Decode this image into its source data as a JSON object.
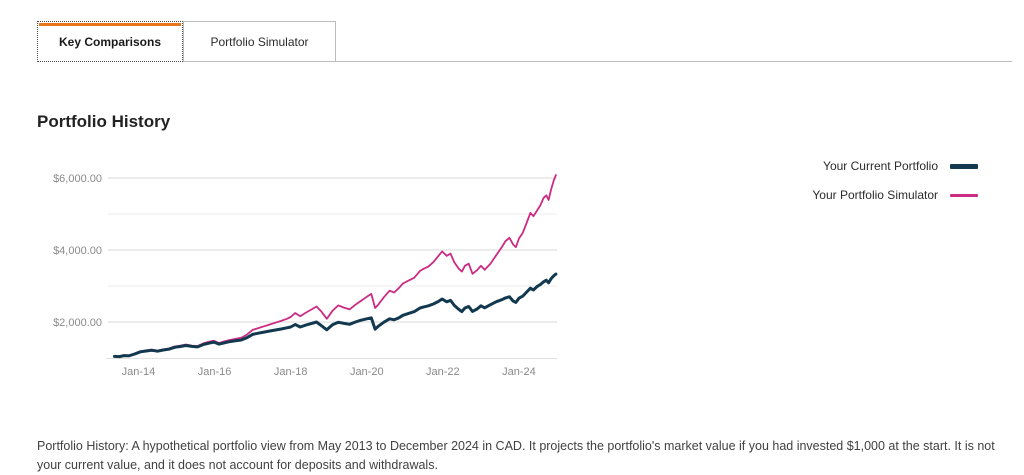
{
  "tabs": [
    {
      "label": "Key Comparisons",
      "active": true
    },
    {
      "label": "Portfolio Simulator",
      "active": false
    }
  ],
  "section": {
    "title": "Portfolio History"
  },
  "footnote": "Portfolio History: A hypothetical portfolio view from May 2013 to December 2024 in CAD. It projects the portfolio's market value if you had invested $1,000 at the start. It is not your current value, and it does not account for deposits and withdrawals.",
  "colors": {
    "accent_orange": "#e8771c",
    "current_portfolio": "#12394f",
    "portfolio_simulator": "#cb2b83",
    "grid_major": "#dadada",
    "grid_minor": "#ededed",
    "axis_line": "#e0e0e0",
    "axis_text": "#8a8a8a"
  },
  "chart_data": {
    "type": "line",
    "title": "Portfolio History",
    "currency": "CAD",
    "xlabel": "",
    "ylabel": "",
    "legend_position": "right",
    "grid": "horizontal",
    "x_range": [
      2013.33,
      2025.0
    ],
    "y_range": [
      1000,
      6900
    ],
    "x_ticks": [
      {
        "t": 2014,
        "label": "Jan-14"
      },
      {
        "t": 2016,
        "label": "Jan-16"
      },
      {
        "t": 2018,
        "label": "Jan-18"
      },
      {
        "t": 2020,
        "label": "Jan-20"
      },
      {
        "t": 2022,
        "label": "Jan-22"
      },
      {
        "t": 2024,
        "label": "Jan-24"
      }
    ],
    "y_ticks": [
      {
        "v": 2000,
        "label": "$2,000.00"
      },
      {
        "v": 4000,
        "label": "$4,000.00"
      },
      {
        "v": 6000,
        "label": "$6,000.00"
      }
    ],
    "grid_minor_v": [
      3000,
      5000
    ],
    "series": [
      {
        "name": "Your Current Portfolio",
        "color": "#12394f",
        "stroke_width": 3,
        "points": [
          [
            2013.37,
            1045
          ],
          [
            2013.5,
            1040
          ],
          [
            2013.62,
            1068
          ],
          [
            2013.75,
            1062
          ],
          [
            2013.9,
            1112
          ],
          [
            2014.05,
            1172
          ],
          [
            2014.2,
            1195
          ],
          [
            2014.35,
            1215
          ],
          [
            2014.5,
            1190
          ],
          [
            2014.65,
            1222
          ],
          [
            2014.8,
            1245
          ],
          [
            2014.95,
            1298
          ],
          [
            2015.1,
            1320
          ],
          [
            2015.25,
            1348
          ],
          [
            2015.4,
            1322
          ],
          [
            2015.55,
            1308
          ],
          [
            2015.7,
            1372
          ],
          [
            2015.85,
            1412
          ],
          [
            2015.98,
            1442
          ],
          [
            2016.12,
            1385
          ],
          [
            2016.25,
            1420
          ],
          [
            2016.4,
            1455
          ],
          [
            2016.55,
            1478
          ],
          [
            2016.7,
            1500
          ],
          [
            2016.85,
            1565
          ],
          [
            2017.0,
            1655
          ],
          [
            2017.15,
            1690
          ],
          [
            2017.3,
            1720
          ],
          [
            2017.45,
            1750
          ],
          [
            2017.6,
            1778
          ],
          [
            2017.75,
            1805
          ],
          [
            2017.9,
            1838
          ],
          [
            2018.0,
            1862
          ],
          [
            2018.12,
            1930
          ],
          [
            2018.25,
            1860
          ],
          [
            2018.4,
            1915
          ],
          [
            2018.55,
            1960
          ],
          [
            2018.68,
            2000
          ],
          [
            2018.8,
            1905
          ],
          [
            2018.95,
            1782
          ],
          [
            2019.1,
            1925
          ],
          [
            2019.25,
            1995
          ],
          [
            2019.4,
            1960
          ],
          [
            2019.55,
            1935
          ],
          [
            2019.7,
            2000
          ],
          [
            2019.85,
            2050
          ],
          [
            2020.0,
            2090
          ],
          [
            2020.12,
            2115
          ],
          [
            2020.22,
            1800
          ],
          [
            2020.3,
            1880
          ],
          [
            2020.45,
            1995
          ],
          [
            2020.6,
            2090
          ],
          [
            2020.72,
            2060
          ],
          [
            2020.85,
            2120
          ],
          [
            2020.95,
            2185
          ],
          [
            2021.1,
            2240
          ],
          [
            2021.25,
            2290
          ],
          [
            2021.4,
            2390
          ],
          [
            2021.5,
            2420
          ],
          [
            2021.62,
            2450
          ],
          [
            2021.75,
            2500
          ],
          [
            2021.88,
            2570
          ],
          [
            2021.98,
            2640
          ],
          [
            2022.1,
            2560
          ],
          [
            2022.2,
            2600
          ],
          [
            2022.3,
            2460
          ],
          [
            2022.42,
            2350
          ],
          [
            2022.5,
            2290
          ],
          [
            2022.58,
            2390
          ],
          [
            2022.68,
            2430
          ],
          [
            2022.78,
            2295
          ],
          [
            2022.9,
            2360
          ],
          [
            2023.0,
            2450
          ],
          [
            2023.1,
            2395
          ],
          [
            2023.25,
            2480
          ],
          [
            2023.4,
            2560
          ],
          [
            2023.55,
            2620
          ],
          [
            2023.65,
            2670
          ],
          [
            2023.75,
            2700
          ],
          [
            2023.85,
            2580
          ],
          [
            2023.92,
            2545
          ],
          [
            2024.0,
            2660
          ],
          [
            2024.1,
            2720
          ],
          [
            2024.2,
            2830
          ],
          [
            2024.3,
            2940
          ],
          [
            2024.38,
            2890
          ],
          [
            2024.48,
            2990
          ],
          [
            2024.56,
            3040
          ],
          [
            2024.65,
            3120
          ],
          [
            2024.72,
            3160
          ],
          [
            2024.78,
            3090
          ],
          [
            2024.85,
            3210
          ],
          [
            2024.92,
            3290
          ],
          [
            2024.97,
            3330
          ]
        ]
      },
      {
        "name": "Your Portfolio Simulator",
        "color": "#cb2b83",
        "stroke_width": 1.8,
        "points": [
          [
            2013.37,
            1050
          ],
          [
            2013.5,
            1045
          ],
          [
            2013.62,
            1075
          ],
          [
            2013.75,
            1070
          ],
          [
            2013.9,
            1125
          ],
          [
            2014.05,
            1185
          ],
          [
            2014.2,
            1210
          ],
          [
            2014.35,
            1230
          ],
          [
            2014.5,
            1205
          ],
          [
            2014.65,
            1240
          ],
          [
            2014.8,
            1265
          ],
          [
            2014.95,
            1320
          ],
          [
            2015.1,
            1345
          ],
          [
            2015.25,
            1375
          ],
          [
            2015.4,
            1345
          ],
          [
            2015.55,
            1330
          ],
          [
            2015.7,
            1405
          ],
          [
            2015.85,
            1450
          ],
          [
            2015.98,
            1480
          ],
          [
            2016.12,
            1415
          ],
          [
            2016.25,
            1460
          ],
          [
            2016.4,
            1500
          ],
          [
            2016.55,
            1530
          ],
          [
            2016.7,
            1560
          ],
          [
            2016.85,
            1650
          ],
          [
            2017.0,
            1780
          ],
          [
            2017.15,
            1830
          ],
          [
            2017.3,
            1880
          ],
          [
            2017.45,
            1930
          ],
          [
            2017.6,
            1980
          ],
          [
            2017.75,
            2030
          ],
          [
            2017.9,
            2090
          ],
          [
            2018.0,
            2140
          ],
          [
            2018.12,
            2250
          ],
          [
            2018.25,
            2160
          ],
          [
            2018.4,
            2260
          ],
          [
            2018.55,
            2350
          ],
          [
            2018.68,
            2430
          ],
          [
            2018.8,
            2300
          ],
          [
            2018.95,
            2090
          ],
          [
            2019.1,
            2310
          ],
          [
            2019.25,
            2460
          ],
          [
            2019.4,
            2400
          ],
          [
            2019.55,
            2350
          ],
          [
            2019.7,
            2480
          ],
          [
            2019.85,
            2590
          ],
          [
            2020.0,
            2700
          ],
          [
            2020.12,
            2780
          ],
          [
            2020.22,
            2390
          ],
          [
            2020.3,
            2480
          ],
          [
            2020.45,
            2690
          ],
          [
            2020.6,
            2870
          ],
          [
            2020.72,
            2820
          ],
          [
            2020.85,
            2950
          ],
          [
            2020.95,
            3070
          ],
          [
            2021.1,
            3150
          ],
          [
            2021.25,
            3230
          ],
          [
            2021.4,
            3420
          ],
          [
            2021.5,
            3480
          ],
          [
            2021.62,
            3540
          ],
          [
            2021.75,
            3660
          ],
          [
            2021.88,
            3830
          ],
          [
            2021.98,
            3960
          ],
          [
            2022.1,
            3840
          ],
          [
            2022.2,
            3900
          ],
          [
            2022.3,
            3660
          ],
          [
            2022.42,
            3480
          ],
          [
            2022.5,
            3400
          ],
          [
            2022.58,
            3560
          ],
          [
            2022.68,
            3620
          ],
          [
            2022.78,
            3340
          ],
          [
            2022.9,
            3440
          ],
          [
            2023.0,
            3560
          ],
          [
            2023.1,
            3450
          ],
          [
            2023.25,
            3620
          ],
          [
            2023.4,
            3850
          ],
          [
            2023.55,
            4080
          ],
          [
            2023.65,
            4250
          ],
          [
            2023.75,
            4340
          ],
          [
            2023.85,
            4150
          ],
          [
            2023.92,
            4080
          ],
          [
            2024.0,
            4320
          ],
          [
            2024.1,
            4480
          ],
          [
            2024.2,
            4750
          ],
          [
            2024.3,
            5030
          ],
          [
            2024.38,
            4940
          ],
          [
            2024.48,
            5100
          ],
          [
            2024.56,
            5240
          ],
          [
            2024.65,
            5450
          ],
          [
            2024.72,
            5520
          ],
          [
            2024.78,
            5390
          ],
          [
            2024.85,
            5700
          ],
          [
            2024.92,
            5950
          ],
          [
            2024.97,
            6080
          ]
        ]
      }
    ]
  }
}
